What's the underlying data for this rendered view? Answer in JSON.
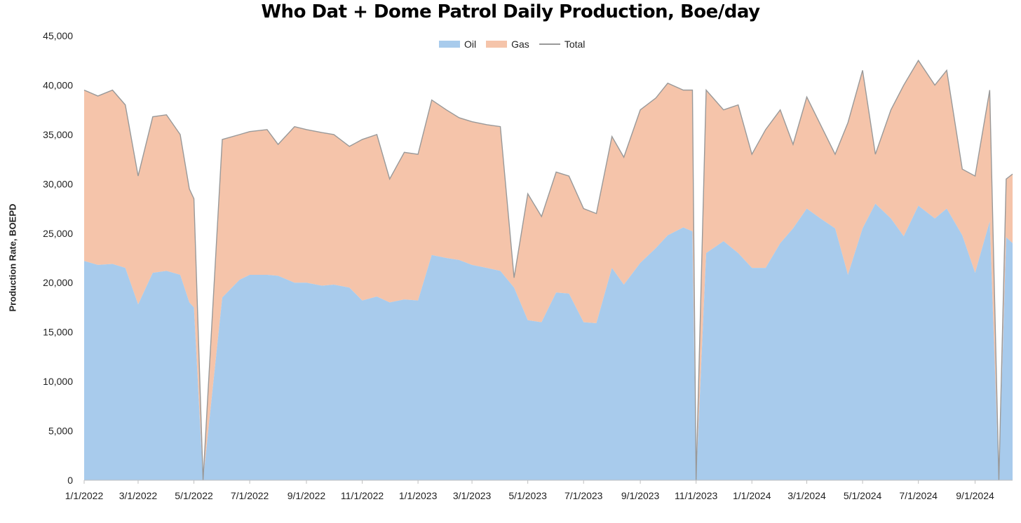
{
  "chart_data": {
    "type": "area",
    "title": "Who Dat + Dome Patrol Daily Production, Boe/day",
    "ylabel": "Production Rate, BOEPD",
    "xlabel": "",
    "ylim": [
      0,
      45000
    ],
    "y_ticks": [
      0,
      5000,
      10000,
      15000,
      20000,
      25000,
      30000,
      35000,
      40000,
      45000
    ],
    "y_tick_labels": [
      "0",
      "5,000",
      "10,000",
      "15,000",
      "20,000",
      "25,000",
      "30,000",
      "35,000",
      "40,000",
      "45,000"
    ],
    "x_tick_labels": [
      "1/1/2022",
      "3/1/2022",
      "5/1/2022",
      "7/1/2022",
      "9/1/2022",
      "11/1/2022",
      "1/1/2023",
      "3/1/2023",
      "5/1/2023",
      "7/1/2023",
      "9/1/2023",
      "11/1/2023",
      "1/1/2024",
      "3/1/2024",
      "5/1/2024",
      "7/1/2024",
      "9/1/2024"
    ],
    "x_ticks_days": [
      0,
      59,
      120,
      181,
      243,
      304,
      365,
      424,
      485,
      546,
      608,
      669,
      730,
      790,
      851,
      912,
      974
    ],
    "x_range_days": [
      0,
      1015
    ],
    "legend": [
      "Oil",
      "Gas",
      "Total"
    ],
    "colors": {
      "oil": "#a8cbec",
      "gas": "#f5c4aa",
      "total": "#999999"
    },
    "series_monthly_approx": {
      "x_days": [
        0,
        15,
        31,
        45,
        59,
        75,
        90,
        105,
        115,
        120,
        130,
        151,
        170,
        181,
        200,
        212,
        230,
        243,
        260,
        273,
        290,
        304,
        320,
        334,
        350,
        365,
        380,
        396,
        410,
        424,
        440,
        455,
        470,
        485,
        500,
        516,
        530,
        546,
        560,
        577,
        590,
        608,
        625,
        638,
        655,
        665,
        669,
        680,
        699,
        715,
        730,
        745,
        761,
        775,
        790,
        805,
        821,
        835,
        851,
        865,
        882,
        896,
        912,
        930,
        943,
        960,
        974,
        990,
        1000,
        1008,
        1015
      ],
      "oil": [
        22200,
        21800,
        21900,
        21500,
        17800,
        21000,
        21200,
        20800,
        18000,
        17500,
        0,
        18500,
        20300,
        20800,
        20800,
        20700,
        20000,
        20000,
        19700,
        19800,
        19500,
        18200,
        18600,
        18000,
        18300,
        18200,
        22800,
        22500,
        22300,
        21800,
        21500,
        21200,
        19500,
        16200,
        16000,
        19000,
        18900,
        16000,
        15900,
        21500,
        19800,
        22000,
        23500,
        24800,
        25600,
        25200,
        0,
        23000,
        24200,
        23000,
        21500,
        21500,
        24000,
        25500,
        27500,
        26500,
        25500,
        20800,
        25500,
        28000,
        26500,
        24700,
        27800,
        26500,
        27500,
        24800,
        21000,
        26200,
        0,
        24600,
        24000
      ],
      "total": [
        39500,
        38900,
        39500,
        38000,
        30800,
        36800,
        37000,
        35000,
        29500,
        28500,
        0,
        34500,
        35000,
        35300,
        35500,
        34000,
        35800,
        35500,
        35200,
        35000,
        33800,
        34500,
        35000,
        30500,
        33200,
        33000,
        38500,
        37500,
        36700,
        36300,
        36000,
        35800,
        20500,
        29000,
        26700,
        31200,
        30800,
        27500,
        27000,
        34800,
        32700,
        37500,
        38700,
        40200,
        39500,
        39500,
        0,
        39500,
        37500,
        38000,
        33000,
        35500,
        37500,
        34000,
        38800,
        36000,
        33000,
        36200,
        41500,
        33000,
        37500,
        40000,
        42500,
        40000,
        41500,
        31500,
        30800,
        39500,
        0,
        30500,
        31000
      ]
    }
  }
}
